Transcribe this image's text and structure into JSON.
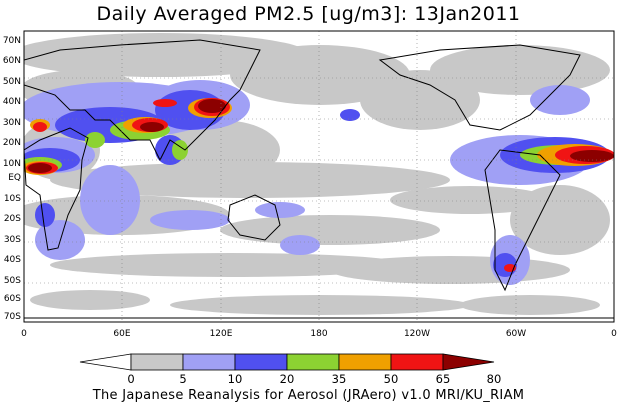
{
  "title": "Daily Averaged PM2.5 [ug/m3]: 13Jan2011",
  "footer": "The Japanese Reanalysis for Aerosol (JRAero) v1.0 MRI/KU_RIAM",
  "lat_ticks": [
    "70N",
    "60N",
    "50N",
    "40N",
    "30N",
    "20N",
    "10N",
    "EQ",
    "10S",
    "20S",
    "30S",
    "40S",
    "50S",
    "60S",
    "70S"
  ],
  "lon_ticks": [
    "0",
    "60E",
    "120E",
    "180",
    "120W",
    "60W",
    "0"
  ],
  "colorbar": {
    "levels": [
      "0",
      "5",
      "10",
      "20",
      "35",
      "50",
      "65",
      "80"
    ],
    "colors": [
      "#ffffff",
      "#c8c8c8",
      "#a0a0f5",
      "#5050f0",
      "#8cd232",
      "#f0a000",
      "#f01414",
      "#8c0000"
    ]
  }
}
